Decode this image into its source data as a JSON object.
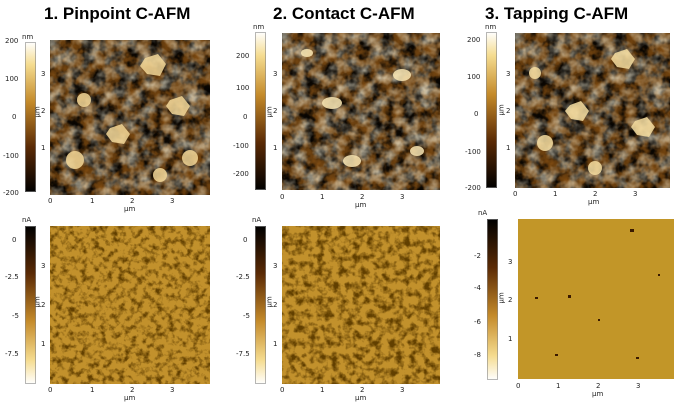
{
  "titles": [
    "1. Pinpoint C-AFM",
    "2. Contact C-AFM",
    "3. Tapping C-AFM"
  ],
  "units": {
    "height": "nm",
    "current": "nA",
    "length": "μm"
  },
  "x_ticks": [
    "0",
    "1",
    "2",
    "3"
  ],
  "y_ticks_image": [
    "0",
    "1",
    "2",
    "3"
  ],
  "height_bars": [
    {
      "ticks": [
        "200",
        "100",
        "0",
        "-100",
        "-200"
      ]
    },
    {
      "ticks": [
        "200",
        "100",
        "0",
        "-100",
        "-200"
      ]
    },
    {
      "ticks": [
        "200",
        "100",
        "0",
        "-100",
        "-200"
      ]
    }
  ],
  "current_bars": [
    {
      "ticks": [
        "0",
        "-2.5",
        "-5",
        "-7.5"
      ]
    },
    {
      "ticks": [
        "0",
        "-2.5",
        "-5",
        "-7.5"
      ]
    },
    {
      "ticks": [
        "-2",
        "-4",
        "-6",
        "-8"
      ]
    }
  ],
  "colors": {
    "afm_dark": "#1a0800",
    "afm_mid": "#a0661a",
    "afm_light": "#fff6d0",
    "tapping_current": "#c29628"
  }
}
